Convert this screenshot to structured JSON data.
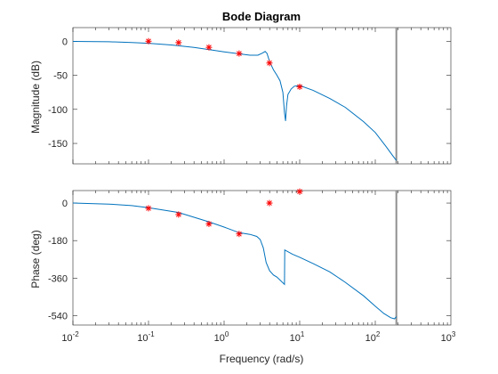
{
  "chart_data": {
    "type": "line",
    "title": "Bode Diagram",
    "xlabel": "Frequency (rad/s)",
    "xscale": "log",
    "xlim": [
      0.01,
      1000
    ],
    "xticks": [
      {
        "base": "10",
        "exp": "-2"
      },
      {
        "base": "10",
        "exp": "-1"
      },
      {
        "base": "10",
        "exp": "0"
      },
      {
        "base": "10",
        "exp": "1"
      },
      {
        "base": "10",
        "exp": "2"
      },
      {
        "base": "10",
        "exp": "3"
      }
    ],
    "grid": false,
    "marker_vline": 190,
    "colors": {
      "line": "#0072BD",
      "markers": "#FF0000",
      "vline": "#909090",
      "axes": "#262626"
    },
    "panels": [
      {
        "name": "magnitude",
        "ylabel": "Magnitude (dB)",
        "ylim": [
          -180,
          20
        ],
        "yticks": [
          0,
          -50,
          -100,
          -150
        ],
        "curve": [
          [
            0.01,
            -0.2
          ],
          [
            0.03,
            -0.8
          ],
          [
            0.06,
            -1.8
          ],
          [
            0.1,
            -3
          ],
          [
            0.2,
            -5.5
          ],
          [
            0.4,
            -9
          ],
          [
            0.7,
            -13
          ],
          [
            1.0,
            -15.5
          ],
          [
            1.6,
            -18.5
          ],
          [
            2.2,
            -20.5
          ],
          [
            2.8,
            -20.5
          ],
          [
            3.2,
            -17.5
          ],
          [
            3.5,
            -15
          ],
          [
            3.7,
            -18
          ],
          [
            4.0,
            -30
          ],
          [
            4.5,
            -42
          ],
          [
            5.0,
            -50
          ],
          [
            5.5,
            -58
          ],
          [
            6.0,
            -75
          ],
          [
            6.3,
            -105
          ],
          [
            6.5,
            -117
          ],
          [
            6.7,
            -95
          ],
          [
            7.0,
            -78
          ],
          [
            7.7,
            -70
          ],
          [
            8.5,
            -66
          ],
          [
            10,
            -65
          ],
          [
            15,
            -72
          ],
          [
            25,
            -84
          ],
          [
            40,
            -97
          ],
          [
            70,
            -118
          ],
          [
            100,
            -134
          ],
          [
            140,
            -155
          ],
          [
            170,
            -168
          ],
          [
            190,
            -175
          ]
        ],
        "markers": [
          [
            0.1,
            0
          ],
          [
            0.25,
            -2
          ],
          [
            0.63,
            -9
          ],
          [
            1.58,
            -18
          ],
          [
            3.98,
            -32
          ],
          [
            10,
            -67
          ]
        ]
      },
      {
        "name": "phase",
        "ylabel": "Phase (deg)",
        "ylim": [
          -585,
          60
        ],
        "yticks": [
          0,
          -180,
          -360,
          -540
        ],
        "curve": [
          [
            0.01,
            0
          ],
          [
            0.03,
            -5
          ],
          [
            0.06,
            -12
          ],
          [
            0.1,
            -22
          ],
          [
            0.25,
            -45
          ],
          [
            0.63,
            -90
          ],
          [
            1.0,
            -115
          ],
          [
            1.58,
            -142
          ],
          [
            2.2,
            -150
          ],
          [
            2.7,
            -160
          ],
          [
            3.0,
            -175
          ],
          [
            3.3,
            -215
          ],
          [
            3.6,
            -285
          ],
          [
            4.0,
            -325
          ],
          [
            4.5,
            -345
          ],
          [
            5.0,
            -355
          ],
          [
            6.3,
            -390
          ],
          [
            6.35,
            -225
          ],
          [
            8.0,
            -245
          ],
          [
            10,
            -260
          ],
          [
            15,
            -290
          ],
          [
            25,
            -330
          ],
          [
            40,
            -380
          ],
          [
            70,
            -445
          ],
          [
            100,
            -495
          ],
          [
            130,
            -530
          ],
          [
            160,
            -550
          ],
          [
            180,
            -555
          ],
          [
            190,
            -545
          ]
        ],
        "markers": [
          [
            0.1,
            -25
          ],
          [
            0.25,
            -55
          ],
          [
            0.63,
            -100
          ],
          [
            1.58,
            -148
          ],
          [
            3.98,
            0
          ],
          [
            10,
            55
          ]
        ]
      }
    ]
  }
}
